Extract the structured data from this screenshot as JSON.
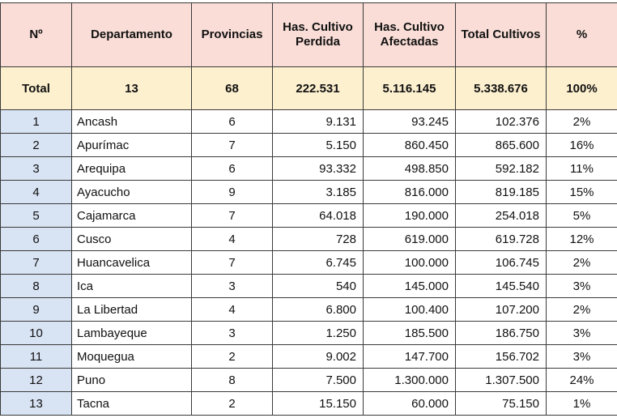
{
  "headers": {
    "n": "Nº",
    "departamento": "Departamento",
    "provincias": "Provincias",
    "perdida": "Has. Cultivo Perdida",
    "afectadas": "Has. Cultivo Afectadas",
    "total": "Total Cultivos",
    "pct": "%"
  },
  "total_row": {
    "label": "Total",
    "departamento": "13",
    "provincias": "68",
    "perdida": "222.531",
    "afectadas": "5.116.145",
    "total": "5.338.676",
    "pct": "100%"
  },
  "rows": [
    {
      "n": "1",
      "departamento": "Ancash",
      "provincias": "6",
      "perdida": "9.131",
      "afectadas": "93.245",
      "total": "102.376",
      "pct": "2%"
    },
    {
      "n": "2",
      "departamento": "Apurímac",
      "provincias": "7",
      "perdida": "5.150",
      "afectadas": "860.450",
      "total": "865.600",
      "pct": "16%"
    },
    {
      "n": "3",
      "departamento": "Arequipa",
      "provincias": "6",
      "perdida": "93.332",
      "afectadas": "498.850",
      "total": "592.182",
      "pct": "11%"
    },
    {
      "n": "4",
      "departamento": "Ayacucho",
      "provincias": "9",
      "perdida": "3.185",
      "afectadas": "816.000",
      "total": "819.185",
      "pct": "15%"
    },
    {
      "n": "5",
      "departamento": "Cajamarca",
      "provincias": "7",
      "perdida": "64.018",
      "afectadas": "190.000",
      "total": "254.018",
      "pct": "5%"
    },
    {
      "n": "6",
      "departamento": "Cusco",
      "provincias": "4",
      "perdida": "728",
      "afectadas": "619.000",
      "total": "619.728",
      "pct": "12%"
    },
    {
      "n": "7",
      "departamento": "Huancavelica",
      "provincias": "7",
      "perdida": "6.745",
      "afectadas": "100.000",
      "total": "106.745",
      "pct": "2%"
    },
    {
      "n": "8",
      "departamento": "Ica",
      "provincias": "3",
      "perdida": "540",
      "afectadas": "145.000",
      "total": "145.540",
      "pct": "3%"
    },
    {
      "n": "9",
      "departamento": "La Libertad",
      "provincias": "4",
      "perdida": "6.800",
      "afectadas": "100.400",
      "total": "107.200",
      "pct": "2%"
    },
    {
      "n": "10",
      "departamento": "Lambayeque",
      "provincias": "3",
      "perdida": "1.250",
      "afectadas": "185.500",
      "total": "186.750",
      "pct": "3%"
    },
    {
      "n": "11",
      "departamento": "Moquegua",
      "provincias": "2",
      "perdida": "9.002",
      "afectadas": "147.700",
      "total": "156.702",
      "pct": "3%"
    },
    {
      "n": "12",
      "departamento": "Puno",
      "provincias": "8",
      "perdida": "7.500",
      "afectadas": "1.300.000",
      "total": "1.307.500",
      "pct": "24%"
    },
    {
      "n": "13",
      "departamento": "Tacna",
      "provincias": "2",
      "perdida": "15.150",
      "afectadas": "60.000",
      "total": "75.150",
      "pct": "1%"
    }
  ]
}
